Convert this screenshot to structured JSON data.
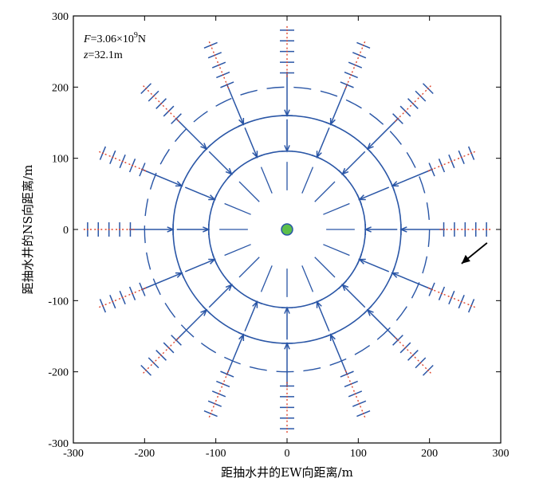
{
  "chart_data": {
    "type": "scatter",
    "title": "",
    "xlabel": "距抽水井的EW向距离/m",
    "ylabel": "距抽水井的NS向距离/m",
    "xlim": [
      -300,
      300
    ],
    "ylim": [
      -300,
      300
    ],
    "xticks": [
      "-300",
      "-200",
      "-100",
      "0",
      "100",
      "200",
      "300"
    ],
    "yticks": [
      "-300",
      "-200",
      "-100",
      "0",
      "100",
      "200",
      "300"
    ],
    "grid": false,
    "annotations": {
      "force_prefix": "F",
      "force_value": "=3.06×10",
      "force_exp": "9",
      "force_unit": "N",
      "depth_prefix": "z",
      "depth_value": "=32.1m"
    },
    "well": {
      "x": 0,
      "y": 0,
      "color": "#5cbf4a"
    },
    "rings": [
      {
        "radius": 110,
        "style": "solid",
        "arrows": "converging"
      },
      {
        "radius": 160,
        "style": "solid",
        "arrows": "converging"
      },
      {
        "radius": 200,
        "style": "dashed",
        "arrows": "none"
      }
    ],
    "spokes": {
      "directions": 16,
      "inner_radii": [
        110,
        160
      ],
      "outer_radii": [
        220,
        235,
        250,
        265,
        280
      ],
      "outer_marker": "red cross-dashed"
    },
    "arrow_pointer": {
      "x": 245,
      "y": -48
    },
    "colors": {
      "vectors": "#2a56a6",
      "outer_dash": "#e0452a",
      "well": "#5cbf4a"
    }
  }
}
